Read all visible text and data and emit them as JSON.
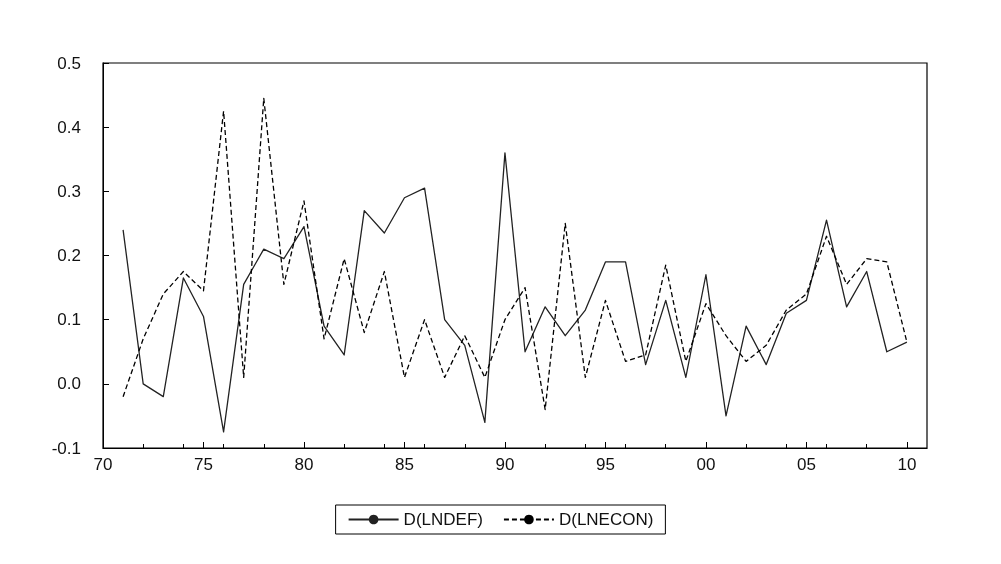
{
  "chart_data": {
    "type": "line",
    "x": [
      1971,
      1972,
      1973,
      1974,
      1975,
      1976,
      1977,
      1978,
      1979,
      1980,
      1981,
      1982,
      1983,
      1984,
      1985,
      1986,
      1987,
      1988,
      1989,
      1990,
      1991,
      1992,
      1993,
      1994,
      1995,
      1996,
      1997,
      1998,
      1999,
      2000,
      2001,
      2002,
      2003,
      2004,
      2005,
      2006,
      2007,
      2008,
      2009,
      2010
    ],
    "series": [
      {
        "name": "D(LNDEF)",
        "color": "#222222",
        "line_style": "solid",
        "values": [
          0.24,
          0.0,
          -0.02,
          0.165,
          0.105,
          -0.075,
          0.155,
          0.21,
          0.195,
          0.245,
          0.09,
          0.045,
          0.27,
          0.235,
          0.29,
          0.305,
          0.1,
          0.06,
          -0.06,
          0.36,
          0.05,
          0.12,
          0.075,
          0.115,
          0.19,
          0.19,
          0.03,
          0.13,
          0.01,
          0.17,
          -0.05,
          0.09,
          0.03,
          0.11,
          0.13,
          0.255,
          0.12,
          0.175,
          0.05,
          0.065
        ]
      },
      {
        "name": "D(LNECON)",
        "color": "#000000",
        "line_style": "dashed",
        "values": [
          -0.02,
          0.07,
          0.14,
          0.175,
          0.145,
          0.425,
          0.01,
          0.445,
          0.155,
          0.285,
          0.07,
          0.195,
          0.08,
          0.175,
          0.01,
          0.1,
          0.01,
          0.075,
          0.01,
          0.1,
          0.15,
          -0.04,
          0.25,
          0.01,
          0.13,
          0.035,
          0.045,
          0.185,
          0.035,
          0.125,
          0.075,
          0.035,
          0.06,
          0.115,
          0.14,
          0.23,
          0.155,
          0.195,
          0.19,
          0.065
        ]
      }
    ],
    "xlim": [
      1970,
      2011
    ],
    "xticks": [
      {
        "value": 1970,
        "label": "70"
      },
      {
        "value": 1975,
        "label": "75"
      },
      {
        "value": 1980,
        "label": "80"
      },
      {
        "value": 1985,
        "label": "85"
      },
      {
        "value": 1990,
        "label": "90"
      },
      {
        "value": 1995,
        "label": "95"
      },
      {
        "value": 2000,
        "label": "00"
      },
      {
        "value": 2005,
        "label": "05"
      },
      {
        "value": 2010,
        "label": "10"
      }
    ],
    "ylim": [
      -0.1,
      0.5
    ],
    "yticks": [
      -0.1,
      {
        "value": 0,
        "label": "0.0"
      },
      0.1,
      0.2,
      0.3,
      0.4,
      0.5
    ],
    "grid": false,
    "legend": "bottom",
    "marker": "none"
  }
}
